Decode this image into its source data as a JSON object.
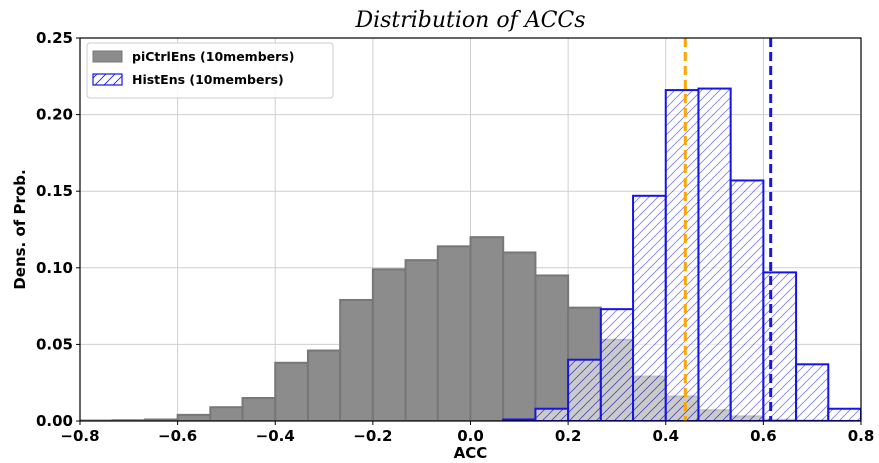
{
  "chart_data": {
    "type": "bar",
    "title": "Distribution of ACCs",
    "xlabel": "ACC",
    "ylabel": "Dens. of Prob.",
    "xlim": [
      -0.8,
      0.8
    ],
    "ylim": [
      0,
      0.25
    ],
    "xticks": [
      "−0.8",
      "−0.6",
      "−0.4",
      "−0.2",
      "0.0",
      "0.2",
      "0.4",
      "0.6",
      "0.8"
    ],
    "yticks": [
      "0.00",
      "0.05",
      "0.10",
      "0.15",
      "0.20",
      "0.25"
    ],
    "grid": true,
    "legend_position": "top-left",
    "series": [
      {
        "name": "piCtrlEns (10members)",
        "style": "gray-filled",
        "fill_color": "#8c8c8c",
        "edge_color": "#777777",
        "bins": [
          {
            "left": -0.8,
            "right": -0.733,
            "value": 0.0003
          },
          {
            "left": -0.733,
            "right": -0.667,
            "value": 0.0005
          },
          {
            "left": -0.667,
            "right": -0.6,
            "value": 0.001
          },
          {
            "left": -0.6,
            "right": -0.533,
            "value": 0.004
          },
          {
            "left": -0.533,
            "right": -0.467,
            "value": 0.009
          },
          {
            "left": -0.467,
            "right": -0.4,
            "value": 0.015
          },
          {
            "left": -0.4,
            "right": -0.333,
            "value": 0.038
          },
          {
            "left": -0.333,
            "right": -0.267,
            "value": 0.046
          },
          {
            "left": -0.267,
            "right": -0.2,
            "value": 0.079
          },
          {
            "left": -0.2,
            "right": -0.133,
            "value": 0.099
          },
          {
            "left": -0.133,
            "right": -0.067,
            "value": 0.105
          },
          {
            "left": -0.067,
            "right": 0.0,
            "value": 0.114
          },
          {
            "left": 0.0,
            "right": 0.067,
            "value": 0.12
          },
          {
            "left": 0.067,
            "right": 0.133,
            "value": 0.11
          },
          {
            "left": 0.133,
            "right": 0.2,
            "value": 0.095
          },
          {
            "left": 0.2,
            "right": 0.267,
            "value": 0.074
          },
          {
            "left": 0.267,
            "right": 0.333,
            "value": 0.053
          },
          {
            "left": 0.333,
            "right": 0.4,
            "value": 0.029
          },
          {
            "left": 0.4,
            "right": 0.467,
            "value": 0.016
          },
          {
            "left": 0.467,
            "right": 0.533,
            "value": 0.007
          },
          {
            "left": 0.533,
            "right": 0.6,
            "value": 0.003
          },
          {
            "left": 0.6,
            "right": 0.667,
            "value": 0.0008
          },
          {
            "left": 0.667,
            "right": 0.733,
            "value": 0.0003
          },
          {
            "left": 0.733,
            "right": 0.8,
            "value": 0.0001
          }
        ]
      },
      {
        "name": "HistEns (10members)",
        "style": "blue-hatched",
        "edge_color": "#1515e6",
        "bins": [
          {
            "left": 0.067,
            "right": 0.133,
            "value": 0.001
          },
          {
            "left": 0.133,
            "right": 0.2,
            "value": 0.008
          },
          {
            "left": 0.2,
            "right": 0.267,
            "value": 0.04
          },
          {
            "left": 0.267,
            "right": 0.333,
            "value": 0.073
          },
          {
            "left": 0.333,
            "right": 0.4,
            "value": 0.147
          },
          {
            "left": 0.4,
            "right": 0.467,
            "value": 0.216
          },
          {
            "left": 0.467,
            "right": 0.533,
            "value": 0.217
          },
          {
            "left": 0.533,
            "right": 0.6,
            "value": 0.157
          },
          {
            "left": 0.6,
            "right": 0.667,
            "value": 0.097
          },
          {
            "left": 0.667,
            "right": 0.733,
            "value": 0.037
          },
          {
            "left": 0.733,
            "right": 0.8,
            "value": 0.008
          },
          {
            "left": 0.8,
            "right": 0.867,
            "value": 0.001
          }
        ]
      }
    ],
    "vlines": [
      {
        "x": 0.44,
        "color": "#ffa500",
        "style": "dashed"
      },
      {
        "x": 0.615,
        "color": "#1515e6",
        "style": "dashed"
      }
    ]
  }
}
